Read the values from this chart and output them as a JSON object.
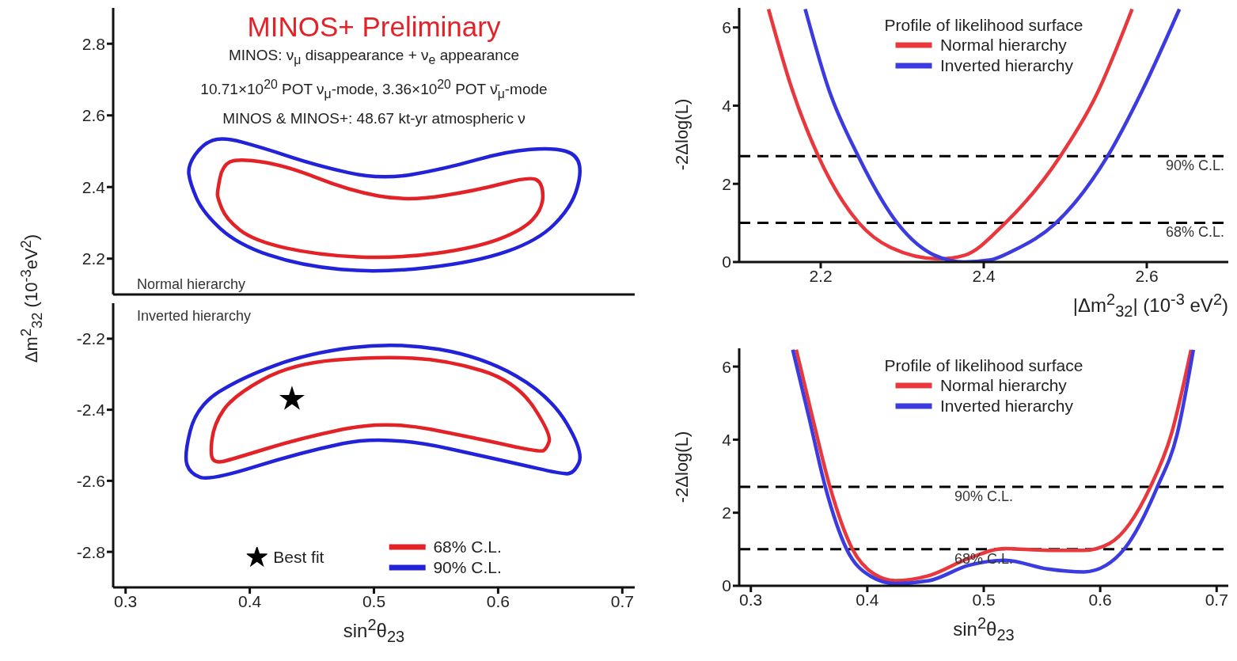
{
  "chart_data": [
    {
      "type": "line",
      "title": "MINOS+ Preliminary",
      "annotations": [
        "MINOS: ν$_{μ}$ disappearance + ν$_{e}$ appearance",
        "10.71×10$^{20}$ POT ν$_{μ}$-mode, 3.36×10$^{20}$ POT ν̄$_{μ}$-mode",
        "MINOS & MINOS+: 48.67 kt-yr atmospheric ν",
        "Normal hierarchy"
      ],
      "ylabel": "Δm$^{2}$$_{32}$ (10$^{-3}$eV$^{2}$)",
      "xlim": [
        0.29,
        0.71
      ],
      "xticks": [
        0.3,
        0.4,
        0.5,
        0.6,
        0.7
      ],
      "ylim": [
        2.1,
        2.9
      ],
      "yticks": [
        2.2,
        2.4,
        2.6,
        2.8
      ],
      "tick_labels": "y"
    },
    {
      "type": "line",
      "xlabel": "|Δm$^{2}$$_{32}$| (10$^{-3}$ eV$^{2}$)",
      "ylabel": "-2Δlog(L)",
      "legend_title": "Profile of likelihood surface",
      "legend": "top",
      "xlim": [
        2.1,
        2.7
      ],
      "xticks": [
        2.2,
        2.4,
        2.6
      ],
      "ylim": [
        0,
        6.5
      ],
      "yticks": [
        0,
        2,
        4,
        6
      ],
      "marker": "none",
      "line_style": "solid",
      "ref_lines": [
        {
          "axis": "y",
          "value": 2.71,
          "label": "90% C.L.",
          "color": "#000000",
          "line_style": "dashed"
        },
        {
          "axis": "y",
          "value": 1,
          "label": "68% C.L.",
          "color": "#000000",
          "line_style": "dashed"
        }
      ],
      "series": [
        {
          "name": "Normal hierarchy",
          "color": "#e8383d",
          "x": [
            2.136,
            2.165,
            2.197,
            2.246,
            2.286,
            2.345,
            2.376,
            2.425,
            2.494,
            2.537,
            2.582
          ],
          "values": [
            6.47,
            4.41,
            2.71,
            1.02,
            0.37,
            0.08,
            0.17,
            0.97,
            2.71,
            4.22,
            6.47
          ]
        },
        {
          "name": "Inverted hierarchy",
          "color": "#3b3bdf",
          "x": [
            2.181,
            2.21,
            2.246,
            2.295,
            2.34,
            2.376,
            2.407,
            2.438,
            2.487,
            2.552,
            2.595,
            2.64
          ],
          "values": [
            6.47,
            4.41,
            2.71,
            0.97,
            0.17,
            0,
            0.05,
            0.31,
            0.97,
            2.71,
            4.41,
            6.47
          ]
        }
      ]
    },
    {
      "type": "line",
      "annotations": [
        "Inverted hierarchy",
        "68% C.L.",
        "90% C.L."
      ],
      "xlabel": "sin$^{2}$θ$_{23}$",
      "xlim": [
        0.29,
        0.71
      ],
      "xticks": [
        0.3,
        0.4,
        0.5,
        0.6,
        0.7
      ],
      "ylim": [
        -2.9,
        -2.1
      ],
      "yticks": [
        -2.8,
        -2.6,
        -2.4,
        -2.2
      ],
      "legend": "bottom",
      "series": [
        {
          "name": "Best fit",
          "type": "scatter",
          "marker": "star",
          "color": "#000000",
          "x": [
            0.434
          ],
          "values": [
            -2.37
          ]
        }
      ]
    },
    {
      "type": "line",
      "xlabel": "sin$^{2}$θ$_{23}$",
      "ylabel": "-2Δlog(L)",
      "legend_title": "Profile of likelihood surface",
      "legend": "top",
      "xlim": [
        0.29,
        0.71
      ],
      "xticks": [
        0.3,
        0.4,
        0.5,
        0.6,
        0.7
      ],
      "ylim": [
        0,
        6.5
      ],
      "yticks": [
        0,
        2,
        4,
        6
      ],
      "marker": "none",
      "line_style": "solid",
      "ref_lines": [
        {
          "axis": "y",
          "value": 2.71,
          "label": "90% C.L.",
          "color": "#000000",
          "line_style": "dashed"
        },
        {
          "axis": "y",
          "value": 1,
          "label": "68% C.L.",
          "color": "#000000",
          "line_style": "dashed"
        }
      ],
      "series": [
        {
          "name": "Normal hierarchy",
          "color": "#e8383d",
          "x": [
            0.339,
            0.353,
            0.368,
            0.387,
            0.406,
            0.424,
            0.453,
            0.487,
            0.518,
            0.555,
            0.586,
            0.608,
            0.643,
            0.661,
            0.678
          ],
          "values": [
            6.46,
            4.6,
            2.7,
            1.02,
            0.32,
            0.14,
            0.28,
            0.75,
            1.02,
            0.97,
            0.97,
            1.16,
            2.7,
            4.14,
            6.46
          ]
        },
        {
          "name": "Inverted hierarchy",
          "color": "#3b3bdf",
          "x": [
            0.336,
            0.35,
            0.364,
            0.382,
            0.403,
            0.424,
            0.453,
            0.487,
            0.518,
            0.555,
            0.586,
            0.605,
            0.621,
            0.649,
            0.666,
            0.68
          ],
          "values": [
            6.46,
            4.6,
            2.7,
            1.02,
            0.26,
            0.06,
            0.14,
            0.56,
            0.7,
            0.46,
            0.38,
            0.56,
            1.02,
            2.7,
            4.14,
            6.46
          ]
        }
      ]
    }
  ]
}
